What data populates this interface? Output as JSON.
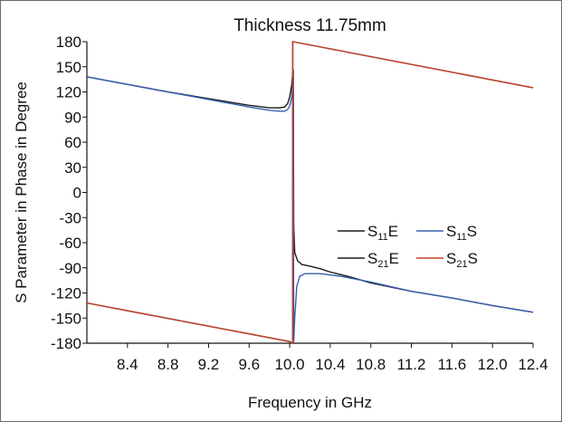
{
  "colors": {
    "black": "#1a1a1a",
    "blue": "#3a5fb0",
    "red": "#c8402a",
    "axis": "#111111"
  },
  "chart_data": {
    "type": "line",
    "title": "Thickness 11.75mm",
    "xlabel": "Frequency in GHz",
    "ylabel": "S Parameter in Phase in Degree",
    "xlim": [
      8.0,
      12.4
    ],
    "ylim": [
      -180,
      180
    ],
    "x_ticks": [
      "8.4",
      "8.8",
      "9.2",
      "9.6",
      "10.0",
      "10.4",
      "10.8",
      "11.2",
      "11.6",
      "12.0",
      "12.4"
    ],
    "x_tick_labels": [
      "8.4",
      "8.8",
      "9.2",
      "9.6",
      "10.0",
      "10.4",
      "10.8",
      "11.2",
      "11.6",
      "12.0",
      "12.4"
    ],
    "y_ticks": [
      "180",
      "150",
      "120",
      "90",
      "60",
      "30",
      "0",
      "-30",
      "-60",
      "-90",
      "-120",
      "-150",
      "-180"
    ],
    "y_tick_labels": [
      "180",
      "150",
      "120",
      "90",
      "60",
      "30",
      "0",
      "-30",
      "-60",
      "-90",
      "-120",
      "-150",
      "-180"
    ],
    "legend_position": "right-center",
    "grid": false,
    "series": [
      {
        "name": "S11E",
        "name_main": "S",
        "name_sub": "11",
        "name_suffix": "E",
        "color": "#1a1a1a",
        "points": [
          [
            8.0,
            138
          ],
          [
            8.4,
            129
          ],
          [
            8.8,
            120
          ],
          [
            9.2,
            112
          ],
          [
            9.6,
            104
          ],
          [
            9.8,
            101
          ],
          [
            9.9,
            101
          ],
          [
            9.95,
            102
          ],
          [
            9.98,
            106
          ],
          [
            10.0,
            114
          ],
          [
            10.02,
            128
          ],
          [
            10.03,
            142
          ],
          [
            10.035,
            146
          ],
          [
            10.04,
            -40
          ],
          [
            10.05,
            -72
          ],
          [
            10.08,
            -82
          ],
          [
            10.12,
            -86
          ],
          [
            10.2,
            -88
          ],
          [
            10.3,
            -91
          ],
          [
            10.4,
            -95
          ],
          [
            10.6,
            -101
          ],
          [
            10.8,
            -108
          ],
          [
            11.2,
            -118
          ],
          [
            11.6,
            -126
          ],
          [
            12.0,
            -135
          ],
          [
            12.4,
            -143
          ]
        ]
      },
      {
        "name": "S11S",
        "name_main": "S",
        "name_sub": "11",
        "name_suffix": "S",
        "color": "#3a5fb0",
        "points": [
          [
            8.0,
            138
          ],
          [
            8.4,
            129
          ],
          [
            8.8,
            120
          ],
          [
            9.2,
            111
          ],
          [
            9.6,
            102
          ],
          [
            9.8,
            98
          ],
          [
            9.9,
            97
          ],
          [
            9.95,
            97
          ],
          [
            9.98,
            99
          ],
          [
            10.0,
            103
          ],
          [
            10.02,
            114
          ],
          [
            10.03,
            128
          ],
          [
            10.035,
            133
          ],
          [
            10.04,
            -178
          ],
          [
            10.05,
            -150
          ],
          [
            10.07,
            -112
          ],
          [
            10.1,
            -100
          ],
          [
            10.15,
            -97
          ],
          [
            10.3,
            -97
          ],
          [
            10.5,
            -100
          ],
          [
            10.8,
            -107
          ],
          [
            11.2,
            -118
          ],
          [
            11.6,
            -126
          ],
          [
            12.0,
            -135
          ],
          [
            12.4,
            -143
          ]
        ]
      },
      {
        "name": "S21E",
        "name_main": "S",
        "name_sub": "21",
        "name_suffix": "E",
        "color": "#1a1a1a",
        "points": [
          [
            8.0,
            -132
          ],
          [
            10.0,
            -178
          ],
          [
            10.03,
            -180
          ],
          [
            10.03,
            180
          ],
          [
            12.4,
            125
          ]
        ]
      },
      {
        "name": "S21S",
        "name_main": "S",
        "name_sub": "21",
        "name_suffix": "S",
        "color": "#c8402a",
        "points": [
          [
            8.0,
            -132
          ],
          [
            10.0,
            -178
          ],
          [
            10.03,
            -180
          ],
          [
            10.03,
            180
          ],
          [
            12.4,
            125
          ]
        ]
      }
    ]
  }
}
